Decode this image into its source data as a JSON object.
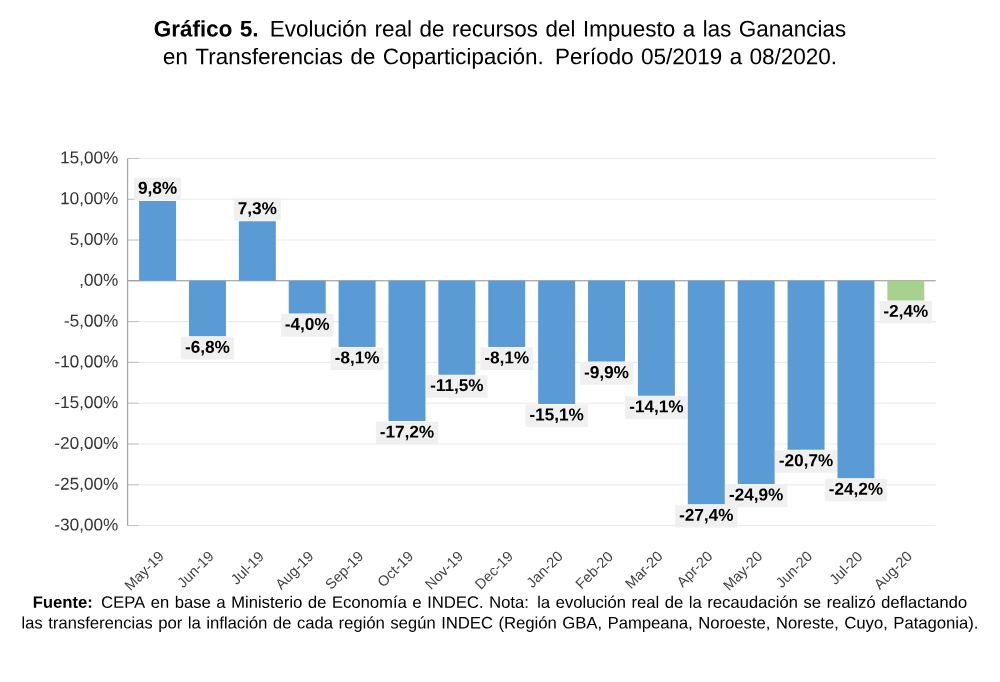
{
  "chart_data": {
    "type": "bar",
    "title": "**Gráfico 5.** Evolución real de recursos del Impuesto a las Ganancias en Transferencias de Coparticipación. Período 05/2019 a 08/2020.",
    "categories": [
      "May-19",
      "Jun-19",
      "Jul-19",
      "Aug-19",
      "Sep-19",
      "Oct-19",
      "Nov-19",
      "Dec-19",
      "Jan-20",
      "Feb-20",
      "Mar-20",
      "Apr-20",
      "May-20",
      "Jun-20",
      "Jul-20",
      "Aug-20"
    ],
    "values": [
      9.8,
      -6.8,
      7.3,
      -4.0,
      -8.1,
      -17.2,
      -11.5,
      -8.1,
      -15.1,
      -9.9,
      -14.1,
      -27.4,
      -24.9,
      -20.7,
      -24.2,
      -2.4
    ],
    "value_labels": [
      "9,8%",
      "-6,8%",
      "7,3%",
      "-4,0%",
      "-8,1%",
      "-17,2%",
      "-11,5%",
      "-8,1%",
      "-15,1%",
      "-9,9%",
      "-14,1%",
      "-27,4%",
      "-24,9%",
      "-20,7%",
      "-24,2%",
      "-2,4%"
    ],
    "colors": [
      "#5b9bd5",
      "#5b9bd5",
      "#5b9bd5",
      "#5b9bd5",
      "#5b9bd5",
      "#5b9bd5",
      "#5b9bd5",
      "#5b9bd5",
      "#5b9bd5",
      "#5b9bd5",
      "#5b9bd5",
      "#5b9bd5",
      "#5b9bd5",
      "#5b9bd5",
      "#5b9bd5",
      "#a9d18e"
    ],
    "ylim": [
      -30,
      15
    ],
    "yticks": [
      {
        "value": -30,
        "label": "-30,00%"
      },
      {
        "value": -25,
        "label": "-25,00%"
      },
      {
        "value": -20,
        "label": "-20,00%"
      },
      {
        "value": -15,
        "label": "-15,00%"
      },
      {
        "value": -10,
        "label": "-10,00%"
      },
      {
        "value": -5,
        "label": "-5,00%"
      },
      {
        "value": 0,
        "label": ",00%"
      },
      {
        "value": 5,
        "label": "5,00%"
      },
      {
        "value": 10,
        "label": "10,00%"
      },
      {
        "value": 15,
        "label": "15,00%"
      }
    ],
    "grid": "y",
    "annotations": [
      "**Fuente:** CEPA en base a Ministerio de Economía e INDEC. Nota: la evolución real de la recaudación se realizó deflactando las transferencias por la inflación de cada región según INDEC (Región GBA, Pampeana, Noroeste, Noreste, Cuyo, Patagonia)."
    ]
  }
}
